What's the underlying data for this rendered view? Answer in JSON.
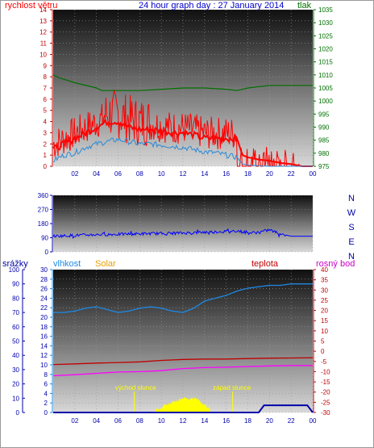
{
  "header": {
    "title": "24 hour graph day : 27 January 2014",
    "wind_label": "rychlost větru",
    "pressure_label": "tlak"
  },
  "colors": {
    "wind": "#ff0000",
    "gust": "#ff0000",
    "avg_wind": "#2a8ad8",
    "pressure": "#007000",
    "direction": "#0000ff",
    "humidity": "#1e88e5",
    "solar": "#ffff00",
    "temperature": "#c00000",
    "dewpoint": "#ff00ff",
    "rain": "#0000aa",
    "axis_left_blue": "#0000aa",
    "axis_red": "#c00000",
    "axis_green": "#007000"
  },
  "time_ticks": [
    "02",
    "04",
    "06",
    "08",
    "10",
    "12",
    "14",
    "16",
    "18",
    "20",
    "22",
    "00"
  ],
  "chart_data": [
    {
      "type": "line",
      "id": "wind-pressure",
      "title": "24 hour graph day : 27 January 2014",
      "x_range_hours": [
        0,
        24
      ],
      "x_tick_labels": [
        "02",
        "04",
        "06",
        "08",
        "10",
        "12",
        "14",
        "16",
        "18",
        "20",
        "22",
        "00"
      ],
      "y_left": {
        "label": "rychlost větru",
        "range": [
          0,
          14
        ],
        "ticks": [
          "0",
          "1",
          "2",
          "3",
          "4",
          "5",
          "6",
          "7",
          "8",
          "9",
          "10",
          "11",
          "12",
          "13",
          "14"
        ]
      },
      "y_right": {
        "label": "tlak",
        "range": [
          975,
          1035
        ],
        "ticks": [
          "975",
          "980",
          "985",
          "990",
          "995",
          "1000",
          "1005",
          "1010",
          "1015",
          "1020",
          "1025",
          "1030",
          "1035"
        ]
      },
      "series": [
        {
          "name": "rychlost větru",
          "axis": "left",
          "x": [
            0,
            1,
            2,
            3,
            4,
            5,
            6,
            7,
            8,
            9,
            10,
            11,
            12,
            13,
            14,
            15,
            16,
            17,
            17.5,
            18,
            19,
            20,
            21,
            22,
            23,
            24
          ],
          "values": [
            1.5,
            2.0,
            2.5,
            3.0,
            3.5,
            4.0,
            4.0,
            3.5,
            3.3,
            3.3,
            3.2,
            3.0,
            3.0,
            2.8,
            2.5,
            2.5,
            2.5,
            2.5,
            1.0,
            0.8,
            0.6,
            0.5,
            0.3,
            0.2,
            0,
            0
          ]
        },
        {
          "name": "",
          "axis": "left",
          "x": [
            0,
            1,
            2,
            3,
            4,
            5,
            6,
            7,
            8,
            9,
            10,
            11,
            12,
            13,
            14,
            15,
            16,
            17,
            17.5,
            18,
            19,
            20,
            21,
            22,
            23,
            24
          ],
          "values": [
            0.5,
            1.0,
            1.2,
            1.7,
            2.0,
            2.2,
            2.4,
            2.2,
            2.0,
            2.0,
            1.9,
            1.8,
            1.7,
            1.5,
            1.3,
            1.2,
            1.0,
            0.8,
            0.2,
            0.1,
            0.05,
            0,
            0,
            0,
            0,
            0
          ]
        },
        {
          "name": "tlak",
          "axis": "right",
          "x": [
            0,
            0.5,
            2,
            4,
            4.5,
            6,
            8,
            10,
            12,
            14,
            16,
            17,
            18,
            20,
            22,
            24
          ],
          "values": [
            1010,
            1009,
            1007,
            1005,
            1004,
            1004,
            1004,
            1004.5,
            1005,
            1005,
            1004.5,
            1004,
            1005,
            1006,
            1006,
            1006
          ]
        }
      ]
    },
    {
      "type": "line",
      "id": "wind-direction",
      "x_range_hours": [
        0,
        24
      ],
      "y_left": {
        "range": [
          0,
          360
        ],
        "ticks": [
          "0",
          "90",
          "180",
          "270",
          "360"
        ]
      },
      "y_right": {
        "ticks": [
          "N",
          "W",
          "S",
          "E",
          "N"
        ]
      },
      "series": [
        {
          "name": "",
          "x": [
            0,
            2,
            4,
            6,
            8,
            10,
            12,
            14,
            16,
            17,
            18,
            19,
            20,
            21,
            22,
            23,
            24
          ],
          "values": [
            100,
            105,
            110,
            112,
            115,
            118,
            120,
            125,
            130,
            135,
            120,
            125,
            140,
            115,
            100,
            100,
            100
          ]
        }
      ]
    },
    {
      "type": "line",
      "id": "weather",
      "x_range_hours": [
        0,
        24
      ],
      "y_axes": {
        "rain": {
          "label": "srážky",
          "range": [
            0,
            100
          ],
          "ticks": [
            "0",
            "10",
            "20",
            "30",
            "40",
            "50",
            "60",
            "70",
            "80",
            "90",
            "100"
          ]
        },
        "humidity": {
          "label": "vlhkost",
          "range": [
            0,
            30
          ],
          "ticks": [
            "0",
            "2",
            "4",
            "6",
            "8",
            "10",
            "12",
            "14",
            "16",
            "18",
            "20",
            "22",
            "24",
            "26",
            "28",
            "30"
          ]
        },
        "solar": {
          "label": "Solar"
        },
        "temperature": {
          "label": "teplota",
          "range": [
            -30,
            40
          ],
          "ticks": [
            "-30",
            "-25",
            "-20",
            "-15",
            "-10",
            "-5",
            "0",
            "5",
            "10",
            "15",
            "20",
            "25",
            "30",
            "35",
            "40"
          ]
        },
        "dewpoint": {
          "label": "rosný bod"
        }
      },
      "annotations": [
        {
          "text": "východ slunce",
          "x_hours": 7.5
        },
        {
          "text": "západ slunce",
          "x_hours": 16.6
        }
      ],
      "series": [
        {
          "name": "vlhkost",
          "axis": "rain",
          "x": [
            0,
            1,
            2,
            3,
            4,
            5,
            6,
            7,
            8,
            9,
            10,
            11,
            12,
            13,
            14,
            15,
            16,
            17,
            18,
            19,
            20,
            21,
            22,
            23,
            24
          ],
          "values": [
            70,
            70,
            71,
            73,
            74,
            72,
            70,
            71,
            73,
            74,
            73,
            71,
            70,
            73,
            78,
            80,
            82,
            85,
            87,
            88,
            89,
            89,
            90,
            90,
            90
          ]
        },
        {
          "name": "teplota",
          "axis": "temperature",
          "x": [
            0,
            2,
            4,
            6,
            8,
            10,
            12,
            14,
            16,
            18,
            20,
            22,
            24
          ],
          "values": [
            -6.5,
            -6.2,
            -5.8,
            -5.5,
            -5.2,
            -4.5,
            -4,
            -3.8,
            -3.8,
            -3.6,
            -3.4,
            -3.3,
            -3.2
          ]
        },
        {
          "name": "rosný bod",
          "axis": "temperature",
          "x": [
            0,
            2,
            4,
            6,
            8,
            10,
            12,
            14,
            16,
            18,
            20,
            22,
            24
          ],
          "values": [
            -12,
            -11.5,
            -10.8,
            -10.2,
            -10,
            -9.5,
            -8.5,
            -8,
            -7.8,
            -7.5,
            -7.2,
            -7,
            -7
          ]
        },
        {
          "name": "Solar",
          "axis": "humidity",
          "x": [
            9.5,
            10,
            10.5,
            11,
            11.5,
            12,
            12.5,
            13,
            13.5,
            14,
            14.5
          ],
          "values": [
            0.5,
            1,
            1.5,
            2,
            2.5,
            3,
            2.8,
            3,
            2.5,
            1.5,
            0.5
          ]
        },
        {
          "name": "srážky",
          "axis": "rain",
          "x": [
            0,
            17,
            18.5,
            19,
            19.5,
            22,
            23.5,
            24
          ],
          "values": [
            0,
            0,
            0,
            0,
            5,
            5,
            5,
            0
          ]
        }
      ]
    }
  ],
  "panel2_right_labels": [
    "N",
    "W",
    "S",
    "E",
    "N"
  ],
  "panel3": {
    "rain_label": "srážky",
    "humidity_label": "vlhkost",
    "solar_label": "Solar",
    "temperature_label": "teplota",
    "dewpoint_label": "rosný bod",
    "sunrise_label": "východ slunce",
    "sunset_label": "západ slunce"
  }
}
